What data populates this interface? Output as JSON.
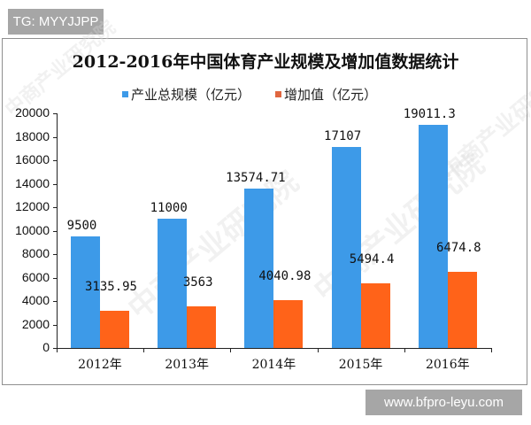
{
  "badges": {
    "top_left": "TG: MYYJJPP",
    "bottom_right": "www.bfpro-leyu.com"
  },
  "watermark": "中商产业研究院",
  "colors": {
    "series_total": "#3d9ae8",
    "series_added": "#ff6319",
    "frame": "#8f8f8f",
    "badge_bg": "#a6a6a6"
  },
  "chart_data": {
    "type": "bar",
    "title": "2012-2016年中国体育产业规模及增加值数据统计",
    "categories": [
      "2012年",
      "2013年",
      "2014年",
      "2015年",
      "2016年"
    ],
    "series": [
      {
        "name": "产业总规模（亿元）",
        "values": [
          9500,
          11000,
          13574.71,
          17107,
          19011.3
        ],
        "labels": [
          "9500",
          "11000",
          "13574.71",
          "17107",
          "19011.3"
        ]
      },
      {
        "name": "增加值（亿元）",
        "values": [
          3135.95,
          3563,
          4040.98,
          5494.4,
          6474.8
        ],
        "labels": [
          "3135.95",
          "3563",
          "4040.98",
          "5494.4",
          "6474.8"
        ]
      }
    ],
    "xlabel": "",
    "ylabel": "",
    "ylim": [
      0,
      20000
    ],
    "yticks": [
      "0",
      "2000",
      "4000",
      "6000",
      "8000",
      "10000",
      "12000",
      "14000",
      "16000",
      "18000",
      "20000"
    ],
    "grid": false,
    "legend_position": "top"
  }
}
